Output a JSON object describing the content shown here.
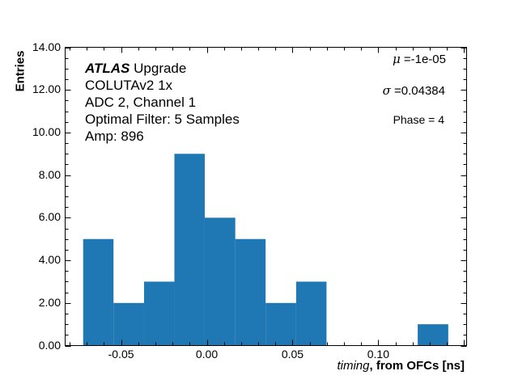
{
  "chart_data": {
    "type": "bar",
    "subtype": "histogram",
    "title": "",
    "xlabel": "timing, from OFCs [ns]",
    "xlabel_italic_part": "timing",
    "xlabel_bold_part": ", from OFCs [ns]",
    "ylabel": "Entries",
    "xlim": [
      -0.0826,
      0.1515
    ],
    "ylim": [
      0,
      14
    ],
    "grid": false,
    "bar_color": "#1f77b4",
    "bin_edges": [
      -0.0721,
      -0.0544,
      -0.0366,
      -0.0189,
      -0.0012,
      0.0166,
      0.0343,
      0.0521,
      0.0698,
      0.0875,
      0.1053,
      0.123,
      0.1408
    ],
    "categories": [
      "-0.063",
      "-0.046",
      "-0.028",
      "-0.010",
      "0.008",
      "0.025",
      "0.043",
      "0.061",
      "0.079",
      "0.096",
      "0.114",
      "0.132"
    ],
    "values": [
      5,
      2,
      3,
      9,
      6,
      5,
      2,
      3,
      0,
      0,
      0,
      1
    ],
    "x_ticks": [
      -0.05,
      0.0,
      0.05,
      0.1
    ],
    "x_tick_labels": [
      "-0.05",
      "0.00",
      "0.05",
      "0.10"
    ],
    "y_ticks": [
      0,
      2,
      4,
      6,
      8,
      10,
      12,
      14
    ],
    "y_tick_labels": [
      "0.00",
      "2.00",
      "4.00",
      "6.00",
      "8.00",
      "10.00",
      "12.00",
      "14.00"
    ],
    "annotations": {
      "atlas_bold": "ATLAS",
      "atlas_rest": " Upgrade",
      "lines": [
        "COLUTAv2 1x",
        "ADC 2, Channel 1",
        "Optimal Filter: 5 Samples",
        "Amp: 896"
      ],
      "mu_symbol": "μ",
      "mu_text": " =-1e-05",
      "sigma_symbol": "σ",
      "sigma_text": " =0.04384",
      "phase": "Phase = 4"
    }
  },
  "text": {
    "ylabel": "Entries",
    "xlabel_italic": "timing",
    "xlabel_bold": ", from OFCs [ns]",
    "atlas_bold": "ATLAS",
    "atlas_rest": " Upgrade",
    "line1": "COLUTAv2 1x",
    "line2": "ADC 2, Channel 1",
    "line3": "Optimal Filter: 5 Samples",
    "line4": "Amp: 896",
    "mu_symbol": "μ",
    "mu_text": " =-1e-05",
    "sigma_symbol": "σ",
    "sigma_text": " =0.04384",
    "phase": "Phase = 4"
  }
}
